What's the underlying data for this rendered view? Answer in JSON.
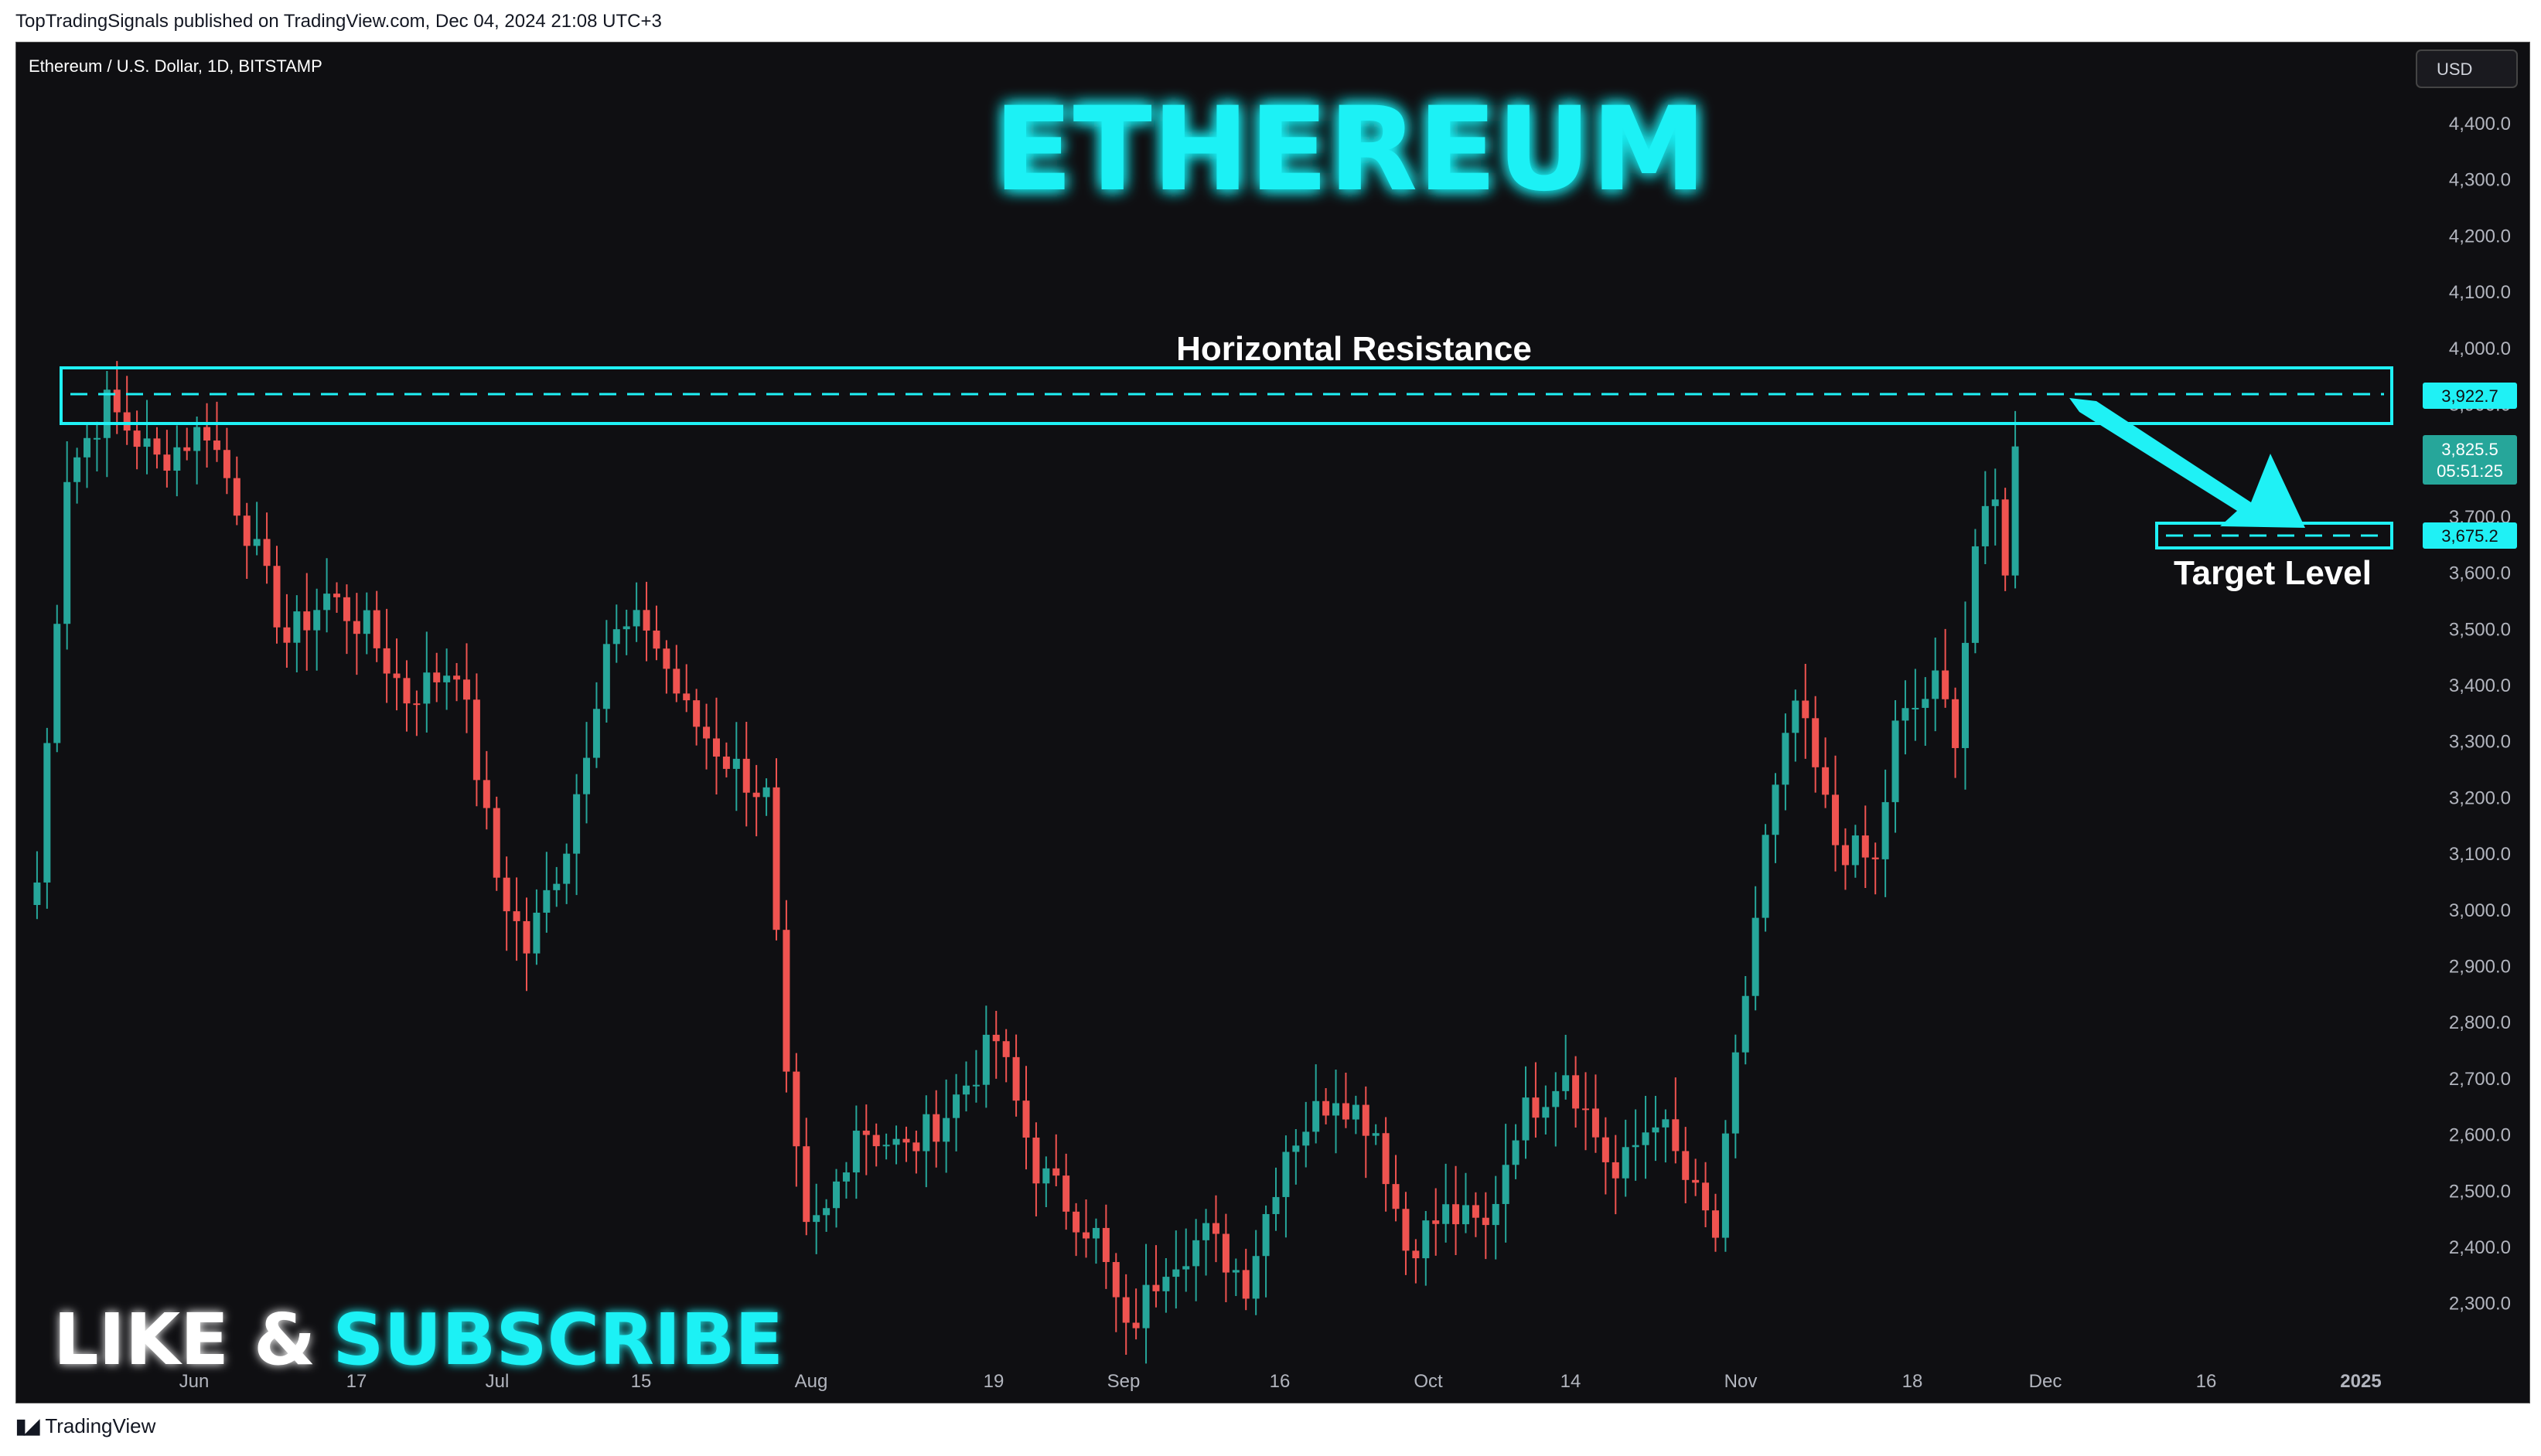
{
  "header": {
    "published_line": "TopTradingSignals published on TradingView.com, Dec 04, 2024 21:08 UTC+3"
  },
  "symbol": {
    "label": "Ethereum / U.S. Dollar, 1D, BITSTAMP",
    "currency_button": "USD"
  },
  "overlay": {
    "title": "ETHEREUM",
    "resistance_label": "Horizontal Resistance",
    "target_label": "Target Level",
    "like": "LIKE &",
    "subscribe": "SUBSCRIBE"
  },
  "price_axis": {
    "ticks": [
      "4,400.0",
      "4,300.0",
      "4,200.0",
      "4,100.0",
      "4,000.0",
      "3,900.0",
      "3,800.0",
      "3,700.0",
      "3,600.0",
      "3,500.0",
      "3,400.0",
      "3,300.0",
      "3,200.0",
      "3,100.0",
      "3,000.0",
      "2,900.0",
      "2,800.0",
      "2,700.0",
      "2,600.0",
      "2,500.0",
      "2,400.0",
      "2,300.0"
    ],
    "resistance_tag": "3,922.7",
    "current_price_tag": "3,825.5",
    "countdown_tag": "05:51:25",
    "target_tag": "3,675.2"
  },
  "time_axis": {
    "ticks": [
      "Jun",
      "17",
      "Jul",
      "15",
      "Aug",
      "19",
      "Sep",
      "16",
      "Oct",
      "14",
      "Nov",
      "18",
      "Dec",
      "16",
      "2025"
    ]
  },
  "footer": {
    "brand": "TradingView"
  },
  "colors": {
    "up": "#26a69a",
    "down": "#ef5350",
    "accent": "#1ff1f5",
    "background": "#0f0f12"
  },
  "chart_data": {
    "type": "candlestick",
    "title": "Ethereum / U.S. Dollar, 1D, BITSTAMP",
    "y_range": [
      2200,
      4500
    ],
    "resistance_level": 3922.7,
    "target_level": 3675.2,
    "last_price": 3825.5,
    "close_series": [
      {
        "date": "2024-05-20",
        "close": 3050
      },
      {
        "date": "2024-05-23",
        "close": 3780
      },
      {
        "date": "2024-05-27",
        "close": 3900
      },
      {
        "date": "2024-06-01",
        "close": 3800
      },
      {
        "date": "2024-06-06",
        "close": 3860
      },
      {
        "date": "2024-06-10",
        "close": 3680
      },
      {
        "date": "2024-06-14",
        "close": 3480
      },
      {
        "date": "2024-06-18",
        "close": 3560
      },
      {
        "date": "2024-06-22",
        "close": 3500
      },
      {
        "date": "2024-06-26",
        "close": 3380
      },
      {
        "date": "2024-07-01",
        "close": 3440
      },
      {
        "date": "2024-07-05",
        "close": 3060
      },
      {
        "date": "2024-07-08",
        "close": 2930
      },
      {
        "date": "2024-07-12",
        "close": 3120
      },
      {
        "date": "2024-07-16",
        "close": 3480
      },
      {
        "date": "2024-07-20",
        "close": 3510
      },
      {
        "date": "2024-07-24",
        "close": 3350
      },
      {
        "date": "2024-07-28",
        "close": 3270
      },
      {
        "date": "2024-08-01",
        "close": 3200
      },
      {
        "date": "2024-08-03",
        "close": 2680
      },
      {
        "date": "2024-08-05",
        "close": 2420
      },
      {
        "date": "2024-08-07",
        "close": 2460
      },
      {
        "date": "2024-08-10",
        "close": 2620
      },
      {
        "date": "2024-08-15",
        "close": 2570
      },
      {
        "date": "2024-08-19",
        "close": 2640
      },
      {
        "date": "2024-08-24",
        "close": 2770
      },
      {
        "date": "2024-08-28",
        "close": 2540
      },
      {
        "date": "2024-09-03",
        "close": 2420
      },
      {
        "date": "2024-09-06",
        "close": 2240
      },
      {
        "date": "2024-09-10",
        "close": 2380
      },
      {
        "date": "2024-09-14",
        "close": 2420
      },
      {
        "date": "2024-09-18",
        "close": 2340
      },
      {
        "date": "2024-09-22",
        "close": 2580
      },
      {
        "date": "2024-09-27",
        "close": 2680
      },
      {
        "date": "2024-10-01",
        "close": 2610
      },
      {
        "date": "2024-10-04",
        "close": 2400
      },
      {
        "date": "2024-10-08",
        "close": 2460
      },
      {
        "date": "2024-10-12",
        "close": 2430
      },
      {
        "date": "2024-10-15",
        "close": 2620
      },
      {
        "date": "2024-10-20",
        "close": 2720
      },
      {
        "date": "2024-10-25",
        "close": 2520
      },
      {
        "date": "2024-10-29",
        "close": 2640
      },
      {
        "date": "2024-11-01",
        "close": 2520
      },
      {
        "date": "2024-11-04",
        "close": 2420
      },
      {
        "date": "2024-11-06",
        "close": 2720
      },
      {
        "date": "2024-11-09",
        "close": 3120
      },
      {
        "date": "2024-11-12",
        "close": 3370
      },
      {
        "date": "2024-11-16",
        "close": 3120
      },
      {
        "date": "2024-11-20",
        "close": 3080
      },
      {
        "date": "2024-11-22",
        "close": 3320
      },
      {
        "date": "2024-11-26",
        "close": 3400
      },
      {
        "date": "2024-11-28",
        "close": 3320
      },
      {
        "date": "2024-11-30",
        "close": 3650
      },
      {
        "date": "2024-12-02",
        "close": 3720
      },
      {
        "date": "2024-12-03",
        "close": 3620
      },
      {
        "date": "2024-12-04",
        "close": 3825.5
      }
    ]
  }
}
